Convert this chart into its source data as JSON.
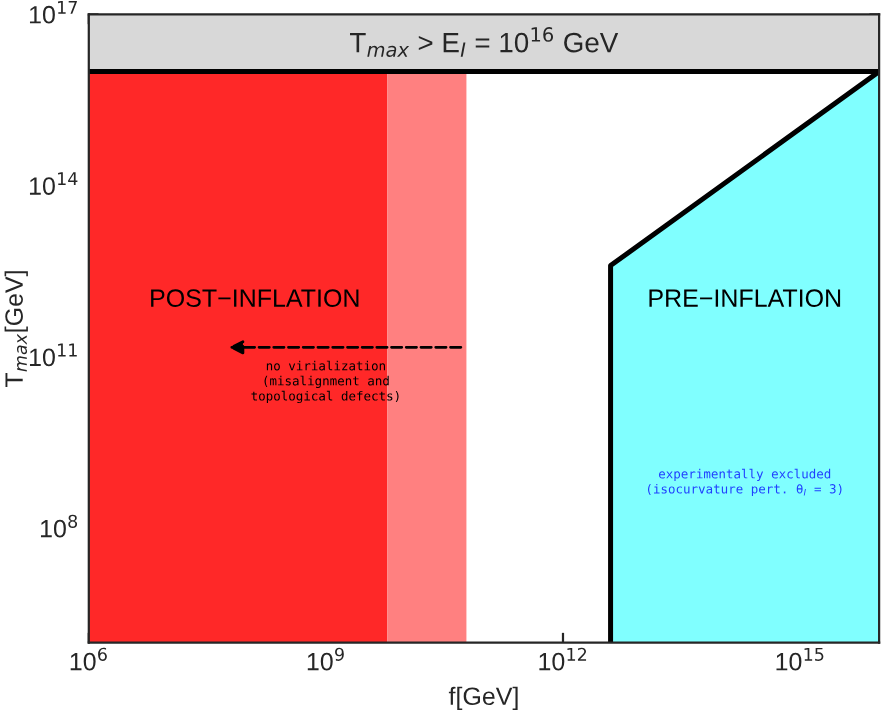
{
  "chart_data": {
    "type": "area",
    "xlabel": "f[GeV]",
    "ylabel": "T$_{max}$[GeV]",
    "log": "xy",
    "xlim": [
      1000000.0,
      1e+16
    ],
    "ylim": [
      1000000.0,
      1e+17
    ],
    "xticks": [
      {
        "value": 1000000.0,
        "label": "10$^{6}$"
      },
      {
        "value": 1000000000.0,
        "label": "10$^{9}$"
      },
      {
        "value": 1000000000000.0,
        "label": "10$^{12}$"
      },
      {
        "value": 1000000000000000.0,
        "label": "10$^{15}$"
      }
    ],
    "yticks": [
      {
        "value": 100000000.0,
        "label": "10$^{8}$"
      },
      {
        "value": 100000000000.0,
        "label": "10$^{11}$"
      },
      {
        "value": 100000000000000.0,
        "label": "10$^{14}$"
      },
      {
        "value": 1e+17,
        "label": "10$^{17}$"
      }
    ],
    "series": [
      {
        "color": "#80ffff",
        "x": [
          4000000000000.0,
          1e+16
        ],
        "values": [
          4000000000000.0,
          1e+16
        ]
      }
    ],
    "bands": [
      {
        "axis": "x",
        "from": 1000000.0,
        "to": 6000000000.0,
        "label": null,
        "color": "#ff2828"
      },
      {
        "axis": "x",
        "from": 6000000000.0,
        "to": 60000000000.0,
        "label": null,
        "color": "#ff8080"
      },
      {
        "axis": "y",
        "from": 1e+16,
        "to": 1e+17,
        "label": "T$_{max}$ > E$_{I}$ = 10$^{16}$ GeV",
        "color": "#d8d8d8"
      }
    ],
    "ref_lines": [
      {
        "axis": "y",
        "value": 1e+16,
        "label": null,
        "color": "#000000"
      }
    ],
    "annotations": [
      "POST−INFLATION",
      "PRE−INFLATION",
      "no virialization\n(misalignment and\ntopological defects)",
      "experimentally excluded\n(isocurvature pert. θ$_{I}$ = 3)"
    ],
    "grid": false
  }
}
